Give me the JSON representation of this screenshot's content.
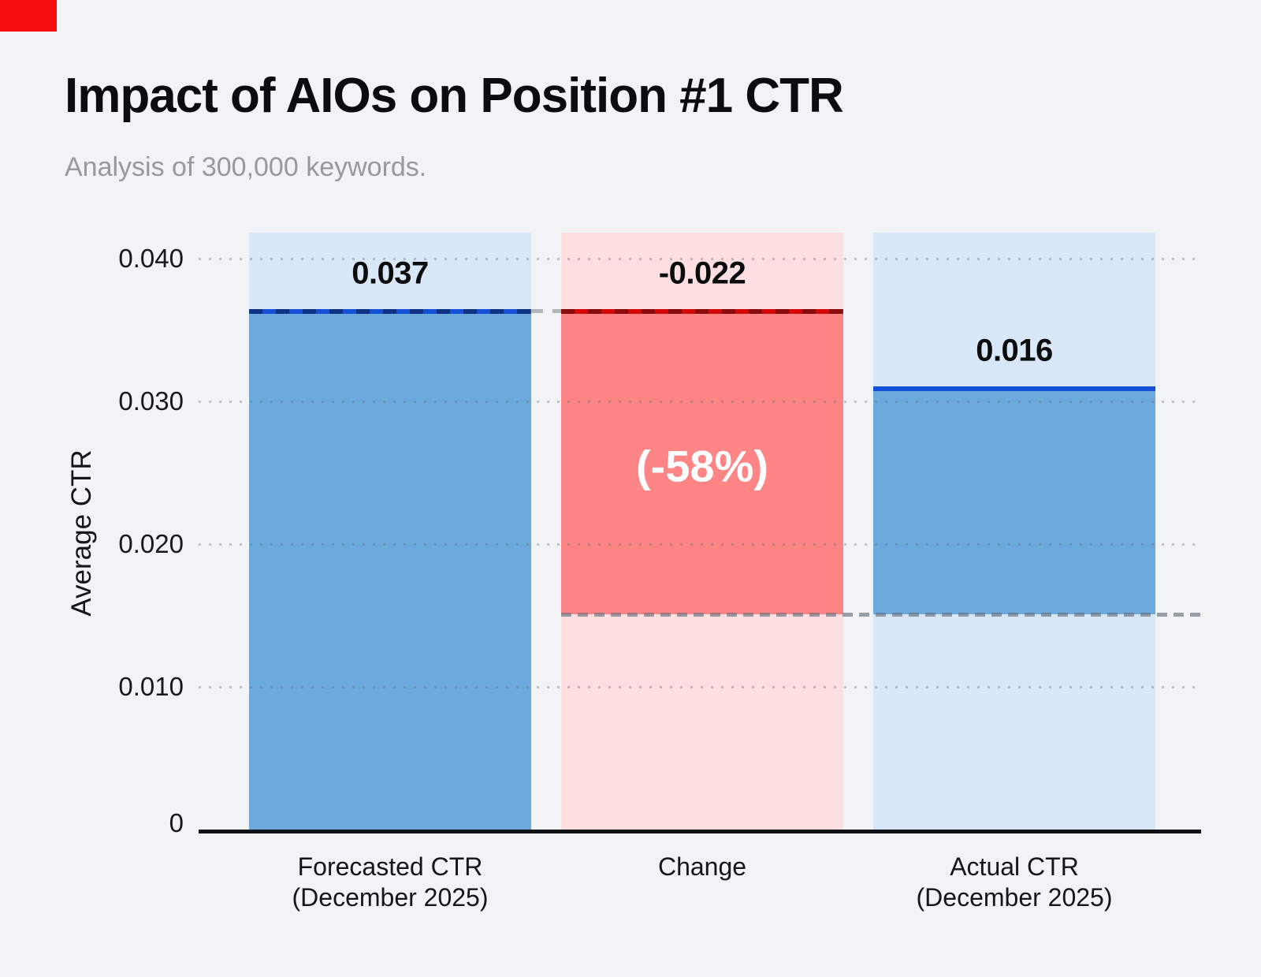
{
  "brand": {
    "mark_color": "#f60d0d"
  },
  "header": {
    "title": "Impact of AIOs on Position #1 CTR",
    "subtitle": "Analysis of 300,000 keywords.",
    "subtitle_color": "#98989d"
  },
  "chart_data": {
    "type": "bar",
    "subtype": "waterfall",
    "title": "Impact of AIOs on Position #1 CTR",
    "subtitle": "Analysis of 300,000 keywords.",
    "xlabel": "",
    "ylabel": "Average CTR",
    "ylim": [
      0,
      0.0418
    ],
    "grid": "dotted horizontal gridlines at each y tick",
    "legend": "none",
    "yticks": [
      {
        "value": 0.04,
        "label": "0.040"
      },
      {
        "value": 0.03,
        "label": "0.030"
      },
      {
        "value": 0.02,
        "label": "0.020"
      },
      {
        "value": 0.01,
        "label": "0.010"
      },
      {
        "value": 0,
        "label": "0"
      }
    ],
    "categories": [
      "Forecasted CTR (December 2025)",
      "Change",
      "Actual CTR (December 2025)"
    ],
    "values": [
      0.037,
      -0.022,
      0.016
    ],
    "bars": [
      {
        "category_lines": [
          "Forecasted CTR",
          "(December 2025)"
        ],
        "value": 0.037,
        "value_label": "0.037",
        "annotation": "",
        "bar_bottom": 0,
        "bar_top": 0.0363,
        "palette": "blue",
        "top_edge_style": "solid-blue-with-navy-dashes"
      },
      {
        "category_lines": [
          "Change"
        ],
        "value": -0.022,
        "value_label": "-0.022",
        "annotation": "(-58%)",
        "bar_bottom": 0.0151,
        "bar_top": 0.0363,
        "palette": "red",
        "top_edge_style": "solid-red-with-maroon-dashes"
      },
      {
        "category_lines": [
          "Actual CTR",
          "(December 2025)"
        ],
        "value": 0.016,
        "value_label": "0.016",
        "annotation": "",
        "bar_bottom": 0.0151,
        "bar_top": 0.0309,
        "palette": "blue",
        "top_edge_style": "solid-blue"
      }
    ],
    "reference_lines": [
      {
        "value": 0.0363,
        "style": "short gray dashed segment in gap between bar 1 and bar 2"
      },
      {
        "value": 0.0151,
        "style": "gray dashed line from left edge of Change bar to right edge of plot"
      }
    ],
    "colors": {
      "background": "#f2f3f5",
      "column_bg_blue": "#d8e8f8",
      "column_bg_red": "#fddfe2",
      "bar_blue": "#6caade",
      "bar_red": "#fd8585",
      "line_blue": "#1550d8",
      "line_blue_dash": "#0e3184",
      "line_red": "#d40808",
      "line_red_dash": "#8a0b0b",
      "axis": "#101114",
      "text": "#0b0c0e",
      "subtitle_gray": "#98989d",
      "brand_red": "#f60d0d"
    }
  }
}
